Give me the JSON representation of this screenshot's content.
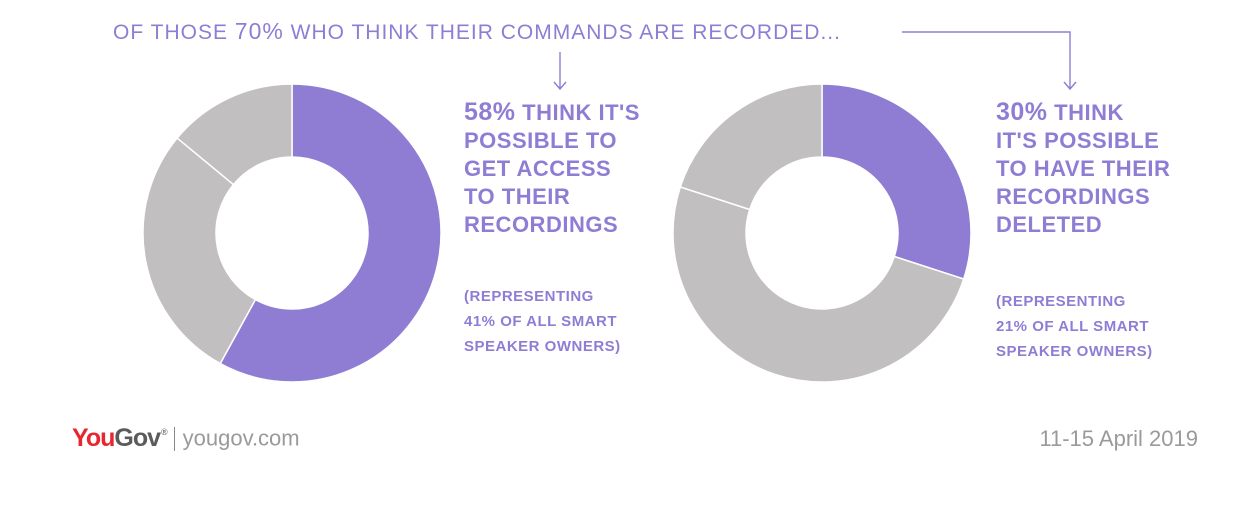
{
  "header": {
    "before": "OF THOSE ",
    "pct": "70%",
    "after": " WHO THINK THEIR COMMANDS ARE RECORDED..."
  },
  "chart_data": [
    {
      "type": "pie",
      "slices": [
        {
          "value": 58,
          "color": "#8f7dd4"
        },
        {
          "value": 28,
          "color": "#c1bfbf"
        },
        {
          "value": 14,
          "color": "#c1bfbf"
        }
      ],
      "statement": {
        "pct": "58%",
        "lines": [
          " THINK IT'S",
          "POSSIBLE TO",
          "GET ACCESS",
          "TO THEIR",
          "RECORDINGS"
        ]
      },
      "note": [
        "(REPRESENTING",
        "41% OF ALL SMART",
        "SPEAKER OWNERS)"
      ]
    },
    {
      "type": "pie",
      "slices": [
        {
          "value": 30,
          "color": "#8f7dd4"
        },
        {
          "value": 50,
          "color": "#c1bfbf"
        },
        {
          "value": 20,
          "color": "#c1bfbf"
        }
      ],
      "statement": {
        "pct": "30%",
        "lines": [
          " THINK",
          "IT'S POSSIBLE",
          "TO HAVE THEIR",
          "RECORDINGS",
          "DELETED"
        ]
      },
      "note": [
        "(REPRESENTING",
        "21% OF ALL SMART",
        "SPEAKER OWNERS)"
      ]
    }
  ],
  "footer": {
    "logo_you": "You",
    "logo_gov": "Gov",
    "logo_mark": "®",
    "site": "yougov.com",
    "date": "11-15 April 2019"
  },
  "colors": {
    "accent": "#8f7dd4",
    "neutral": "#c1bfbf",
    "brand_red": "#e8262f"
  }
}
